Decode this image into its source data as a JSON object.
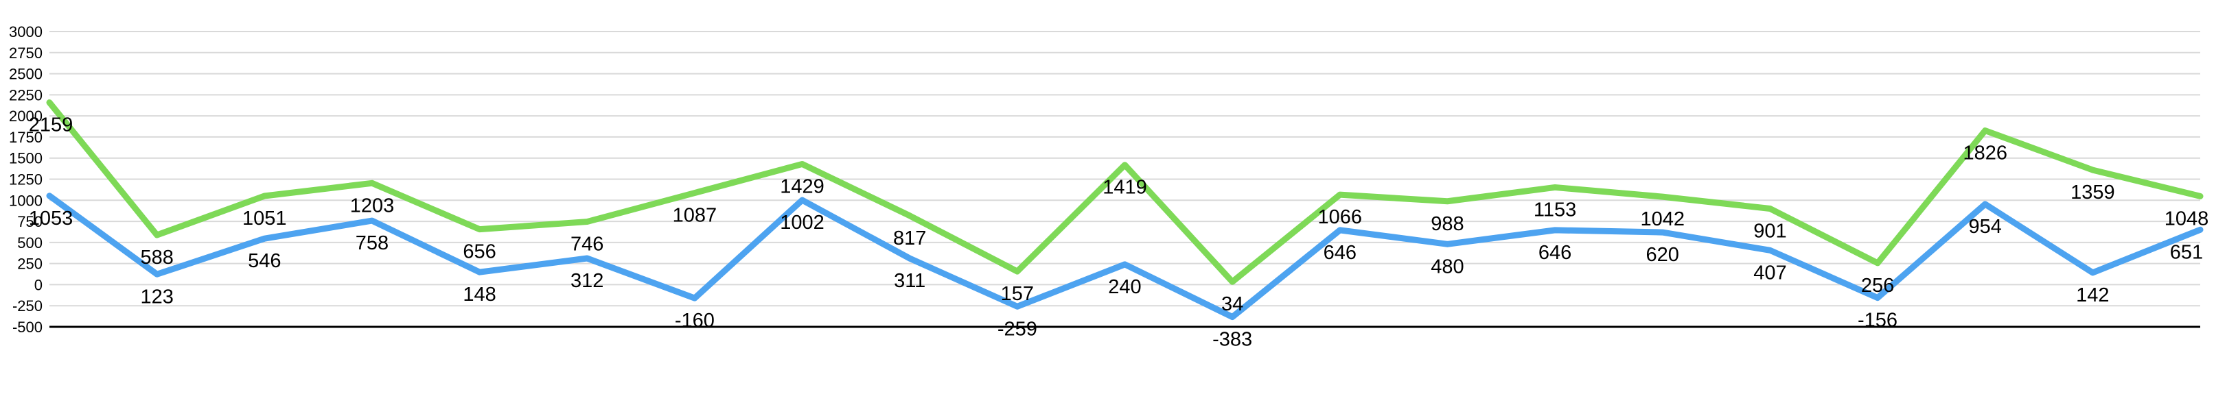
{
  "chart_data": {
    "type": "line",
    "title": "",
    "xlabel": "",
    "ylabel": "",
    "ylim": [
      -500,
      3000
    ],
    "yticks": [
      -500,
      -250,
      0,
      250,
      500,
      750,
      1000,
      1250,
      1500,
      1750,
      2000,
      2250,
      2500,
      2750,
      3000
    ],
    "grid": true,
    "legend": "none",
    "series": [
      {
        "color": "#7ed957",
        "values": [
          2159,
          588,
          1051,
          1203,
          656,
          746,
          1087,
          1429,
          817,
          157,
          1419,
          34,
          1066,
          988,
          1153,
          1042,
          901,
          256,
          1826,
          1359,
          1048
        ]
      },
      {
        "color": "#4da3f0",
        "values": [
          1053,
          123,
          546,
          758,
          148,
          312,
          -160,
          1002,
          311,
          -259,
          240,
          -383,
          646,
          480,
          646,
          620,
          407,
          -156,
          954,
          142,
          651
        ]
      }
    ]
  }
}
